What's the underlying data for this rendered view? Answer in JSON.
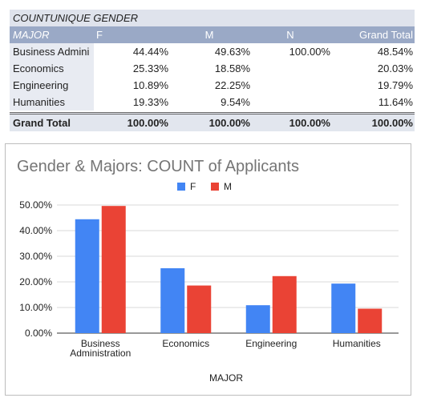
{
  "pivot": {
    "title": "COUNTUNIQUE GENDER",
    "header": {
      "row_label": "MAJOR",
      "columns": [
        "F",
        "M",
        "N",
        "Grand Total"
      ]
    },
    "rows": [
      {
        "label": "Business Admini",
        "cells": [
          "44.44%",
          "49.63%",
          "100.00%",
          "48.54%"
        ]
      },
      {
        "label": "Economics",
        "cells": [
          "25.33%",
          "18.58%",
          "",
          "20.03%"
        ]
      },
      {
        "label": "Engineering",
        "cells": [
          "10.89%",
          "22.25%",
          "",
          "19.79%"
        ]
      },
      {
        "label": "Humanities",
        "cells": [
          "19.33%",
          "9.54%",
          "",
          "11.64%"
        ]
      }
    ],
    "total": {
      "label": "Grand Total",
      "cells": [
        "100.00%",
        "100.00%",
        "100.00%",
        "100.00%"
      ]
    }
  },
  "chart_data": {
    "type": "bar",
    "title": "Gender & Majors: COUNT of Applicants",
    "xlabel": "MAJOR",
    "ylabel": "",
    "categories": [
      [
        "Business",
        "Administration"
      ],
      [
        "Economics"
      ],
      [
        "Engineering"
      ],
      [
        "Humanities"
      ]
    ],
    "series": [
      {
        "name": "F",
        "color": "#4285f4",
        "values": [
          44.44,
          25.33,
          10.89,
          19.33
        ]
      },
      {
        "name": "M",
        "color": "#ea4335",
        "values": [
          49.63,
          18.58,
          22.25,
          9.54
        ]
      }
    ],
    "ylim": [
      0,
      50
    ],
    "yticks": [
      "0.00%",
      "10.00%",
      "20.00%",
      "30.00%",
      "40.00%",
      "50.00%"
    ],
    "ytick_values": [
      0,
      10,
      20,
      30,
      40,
      50
    ],
    "grid": true,
    "legend_position": "top"
  }
}
